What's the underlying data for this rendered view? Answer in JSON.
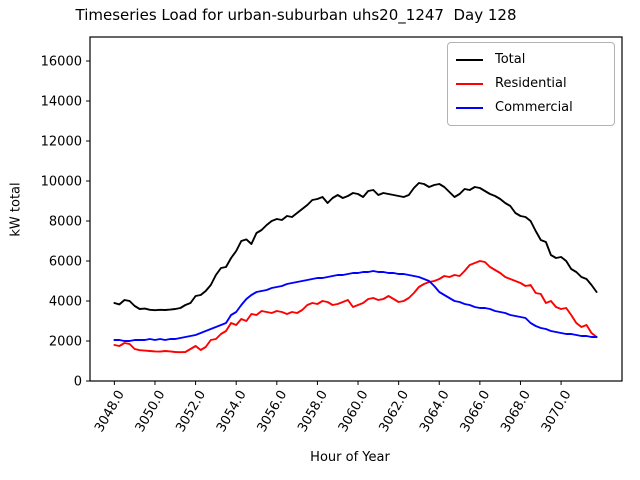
{
  "title": "Timeseries Load for urban-suburban uhs20_1247  Day 128",
  "chart_data": {
    "type": "line",
    "title": "Timeseries Load for urban-suburban uhs20_1247  Day 128",
    "xlabel": "Hour of Year",
    "ylabel": "kW total",
    "legend_position": "upper right",
    "grid": false,
    "xlim": [
      3046.8,
      3073.0
    ],
    "ylim": [
      0,
      17200
    ],
    "xticks": [
      3048,
      3050,
      3052,
      3054,
      3056,
      3058,
      3060,
      3062,
      3064,
      3066,
      3068,
      3070
    ],
    "xtick_labels": [
      "3048.0",
      "3050.0",
      "3052.0",
      "3054.0",
      "3056.0",
      "3058.0",
      "3060.0",
      "3062.0",
      "3064.0",
      "3066.0",
      "3068.0",
      "3070.0"
    ],
    "yticks": [
      0,
      2000,
      4000,
      6000,
      8000,
      10000,
      12000,
      14000,
      16000
    ],
    "ytick_labels": [
      "0",
      "2000",
      "4000",
      "6000",
      "8000",
      "10000",
      "12000",
      "14000",
      "16000"
    ],
    "x_start": 3048.0,
    "x_step": 0.25,
    "series": [
      {
        "name": "Total",
        "color": "#000000",
        "values": [
          3900,
          3830,
          4050,
          4000,
          3750,
          3600,
          3620,
          3560,
          3540,
          3560,
          3550,
          3570,
          3600,
          3650,
          3800,
          3900,
          4250,
          4300,
          4500,
          4800,
          5300,
          5650,
          5700,
          6150,
          6500,
          7000,
          7080,
          6850,
          7400,
          7550,
          7800,
          8000,
          8100,
          8050,
          8250,
          8200,
          8400,
          8600,
          8800,
          9050,
          9100,
          9200,
          8900,
          9150,
          9300,
          9150,
          9250,
          9400,
          9350,
          9200,
          9500,
          9550,
          9300,
          9400,
          9350,
          9300,
          9250,
          9200,
          9300,
          9650,
          9900,
          9850,
          9700,
          9800,
          9850,
          9700,
          9450,
          9200,
          9350,
          9600,
          9550,
          9700,
          9650,
          9500,
          9350,
          9250,
          9100,
          8900,
          8750,
          8400,
          8250,
          8200,
          8000,
          7500,
          7050,
          6950,
          6300,
          6150,
          6200,
          6000,
          5600,
          5450,
          5200,
          5100,
          4800,
          4450
        ]
      },
      {
        "name": "Residential",
        "color": "#ff0000",
        "values": [
          1800,
          1750,
          1900,
          1850,
          1600,
          1540,
          1520,
          1500,
          1480,
          1470,
          1500,
          1480,
          1450,
          1440,
          1450,
          1600,
          1750,
          1550,
          1700,
          2050,
          2100,
          2350,
          2500,
          2900,
          2800,
          3100,
          3000,
          3350,
          3300,
          3500,
          3450,
          3400,
          3500,
          3450,
          3350,
          3450,
          3400,
          3550,
          3800,
          3900,
          3850,
          4000,
          3950,
          3800,
          3850,
          3950,
          4050,
          3700,
          3800,
          3900,
          4100,
          4150,
          4050,
          4100,
          4250,
          4100,
          3950,
          4000,
          4150,
          4400,
          4700,
          4850,
          4950,
          5000,
          5100,
          5250,
          5200,
          5300,
          5250,
          5500,
          5800,
          5900,
          6000,
          5950,
          5700,
          5550,
          5400,
          5200,
          5100,
          5000,
          4900,
          4750,
          4800,
          4400,
          4350,
          3900,
          4000,
          3700,
          3600,
          3650,
          3300,
          2900,
          2700,
          2800,
          2400,
          2200
        ]
      },
      {
        "name": "Commercial",
        "color": "#0000ff",
        "values": [
          2050,
          2050,
          2000,
          2000,
          2050,
          2050,
          2050,
          2100,
          2050,
          2100,
          2050,
          2100,
          2100,
          2150,
          2200,
          2250,
          2300,
          2400,
          2500,
          2600,
          2700,
          2800,
          2900,
          3300,
          3450,
          3800,
          4100,
          4300,
          4450,
          4500,
          4550,
          4650,
          4700,
          4750,
          4850,
          4900,
          4950,
          5000,
          5050,
          5100,
          5150,
          5150,
          5200,
          5250,
          5300,
          5300,
          5350,
          5400,
          5400,
          5450,
          5450,
          5500,
          5450,
          5450,
          5400,
          5400,
          5350,
          5350,
          5300,
          5250,
          5200,
          5100,
          5000,
          4750,
          4450,
          4300,
          4150,
          4000,
          3950,
          3850,
          3800,
          3700,
          3650,
          3650,
          3600,
          3500,
          3450,
          3400,
          3300,
          3250,
          3200,
          3150,
          2900,
          2750,
          2650,
          2600,
          2500,
          2450,
          2400,
          2350,
          2350,
          2300,
          2250,
          2250,
          2200,
          2200
        ]
      }
    ]
  }
}
